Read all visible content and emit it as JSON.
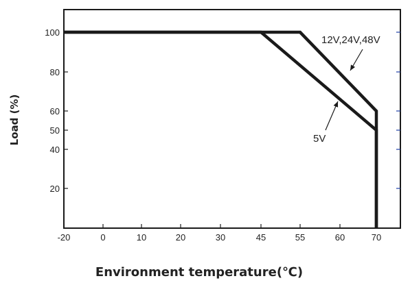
{
  "chart_data": {
    "type": "line",
    "xlabel": "Environment temperature(℃)",
    "ylabel": "Load (%)",
    "xlim": [
      -20,
      72
    ],
    "ylim": [
      0,
      115
    ],
    "x_ticks": [
      -20,
      0,
      10,
      20,
      30,
      45,
      55,
      60,
      70
    ],
    "y_ticks": [
      100,
      80,
      60,
      50,
      40,
      20
    ],
    "grid": false,
    "series": [
      {
        "name": "12V,24V,48V",
        "x": [
          -20,
          55,
          70,
          70
        ],
        "y": [
          100,
          100,
          60,
          0
        ]
      },
      {
        "name": "5V",
        "x": [
          -20,
          45,
          70,
          70
        ],
        "y": [
          100,
          100,
          50,
          0
        ]
      }
    ],
    "annotations": [
      {
        "text": "12V,24V,48V",
        "series": 0
      },
      {
        "text": "5V",
        "series": 1
      }
    ],
    "colors": {
      "line": "#1a1a1a",
      "axis": "#1a1a1a",
      "right_tick": "#1f3fa6"
    }
  }
}
